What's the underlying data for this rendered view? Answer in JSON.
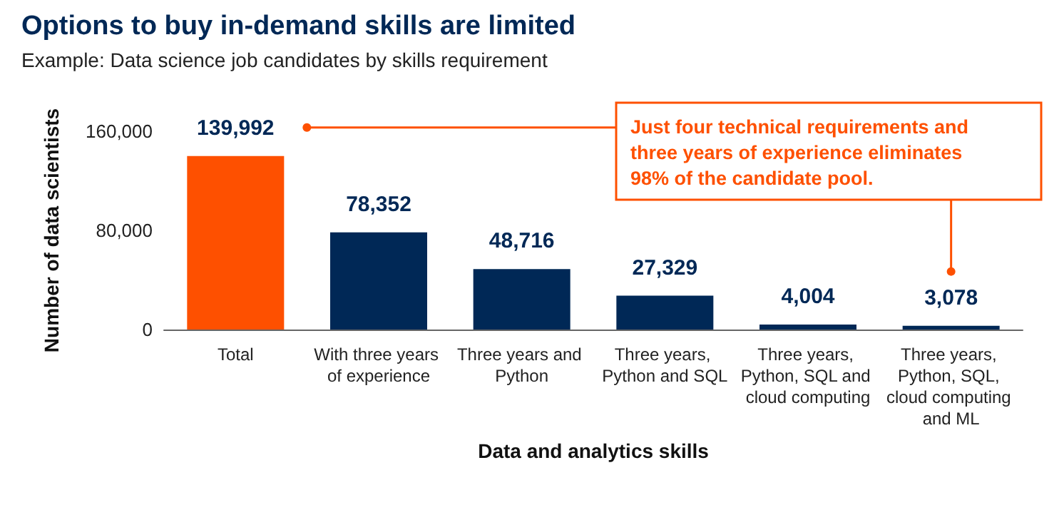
{
  "chart_data": {
    "type": "bar",
    "title": "Options to buy in-demand skills are limited",
    "subtitle": "Example: Data science job candidates by skills requirement",
    "xlabel": "Data and analytics skills",
    "ylabel": "Number of data scientists",
    "categories": [
      "Total",
      "With three years of experience",
      "Three years and Python",
      "Three years, Python and SQL",
      "Three years, Python, SQL and cloud computing",
      "Three years, Python, SQL, cloud computing and ML"
    ],
    "values": [
      139992,
      78352,
      48716,
      27329,
      4004,
      3078
    ],
    "colors": [
      "#fe5000",
      "#002856",
      "#002856",
      "#002856",
      "#002856",
      "#002856"
    ],
    "value_labels": [
      "139,992",
      "78,352",
      "48,716",
      "27,329",
      "4,004",
      "3,078"
    ],
    "ylim": [
      0,
      160000
    ],
    "yticks": [
      0,
      {
        "value": 80000,
        "label": "80,000"
      },
      {
        "value": 160000,
        "label": "160,000"
      }
    ],
    "grid": false,
    "annotations": [
      "Just four technical requirements and three years of experience eliminates 98% of the candidate pool."
    ]
  }
}
